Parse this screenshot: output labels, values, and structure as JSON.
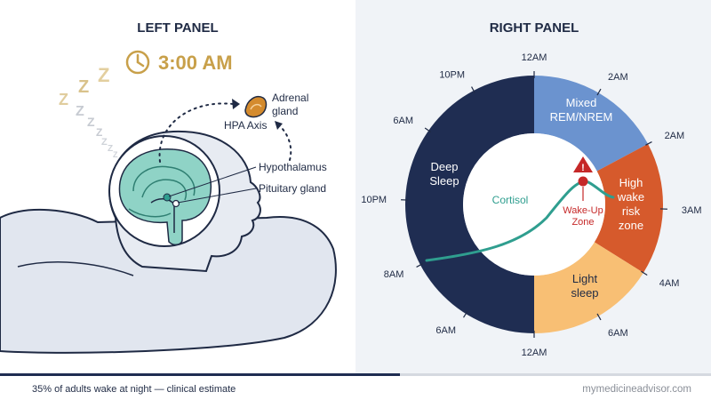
{
  "left_panel": {
    "title": "LEFT PANEL",
    "time": "3:00 AM",
    "zzz": [
      "Z",
      "Z",
      "Z",
      "Z",
      "Z",
      "Z",
      "Z",
      "Z",
      "Z"
    ],
    "hpa_axis_label": "HPA Axis",
    "adrenal_label_line1": "Adrenal",
    "adrenal_label_line2": "gland",
    "hypothalamus_label": "Hypothalamus",
    "pituitary_label": "Pituitary gland",
    "icons": [
      "clock-icon",
      "adrenal-gland-icon"
    ]
  },
  "right_panel": {
    "title": "RIGHT PANEL",
    "ticks": [
      "12AM",
      "2AM",
      "2AM",
      "3AM",
      "4AM",
      "6AM",
      "12AM",
      "6AM",
      "8AM",
      "10PM",
      "6AM",
      "10PM"
    ],
    "segments": {
      "deep_line1": "Deep",
      "deep_line2": "Sleep",
      "mixed_line1": "Mixed",
      "mixed_line2": "REM/NREM",
      "high_line1": "High",
      "high_line2": "wake",
      "high_line3": "risk",
      "high_line4": "zone",
      "light_line1": "Light",
      "light_line2": "sleep"
    },
    "cortisol_label": "Cortisol",
    "wake_up_line1": "Wake-Up",
    "wake_up_line2": "Zone",
    "warning_mark": "!",
    "colors": {
      "deep": "#1f2d52",
      "mixed": "#6b93cf",
      "high": "#d65a2c",
      "light": "#f8bf74",
      "cortisol": "#2f9e8f",
      "warning": "#c62828"
    }
  },
  "footer": {
    "caption": "35% of adults wake at night — clinical estimate",
    "brand": "mymedicineadvisor.com"
  }
}
